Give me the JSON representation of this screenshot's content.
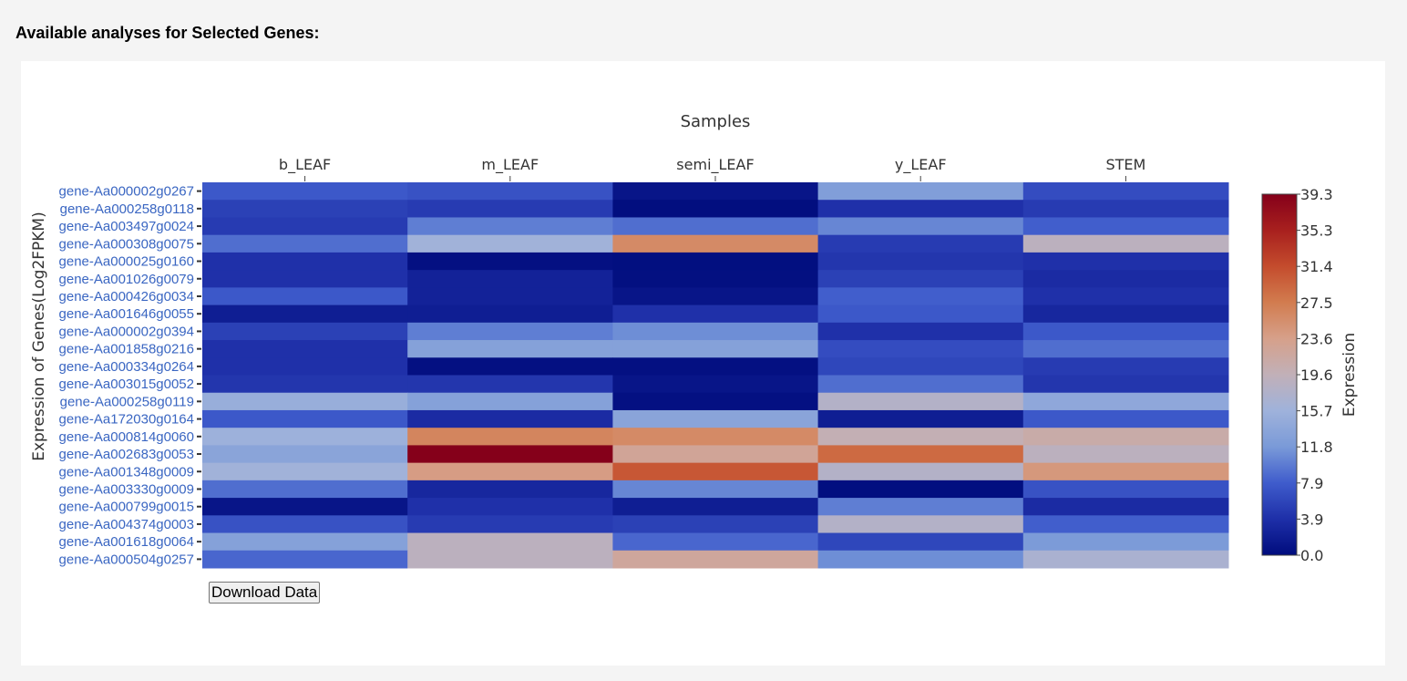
{
  "page": {
    "title": "Available analyses for Selected Genes:"
  },
  "download_label": "Download Data",
  "chart_data": {
    "type": "heatmap",
    "title": "",
    "xlabel": "Samples",
    "ylabel": "Expression of Genes(Log2FPKM)",
    "colorbar_title": "Expression",
    "colorbar_ticks": [
      "39.3",
      "35.3",
      "31.4",
      "27.5",
      "23.6",
      "19.6",
      "15.7",
      "11.8",
      "7.9",
      "3.9",
      "0.0"
    ],
    "zrange": [
      0,
      39.3
    ],
    "colorscale": [
      [
        0.0,
        "#000c7d"
      ],
      [
        0.1,
        "#1e2fa8"
      ],
      [
        0.2,
        "#3f5ccc"
      ],
      [
        0.3,
        "#7a9ad8"
      ],
      [
        0.4,
        "#9fb2db"
      ],
      [
        0.5,
        "#c1b0b8"
      ],
      [
        0.6,
        "#d6a08a"
      ],
      [
        0.7,
        "#d27c4f"
      ],
      [
        0.8,
        "#c44c2d"
      ],
      [
        0.9,
        "#a8201e"
      ],
      [
        1.0,
        "#85001a"
      ]
    ],
    "x": [
      "b_LEAF",
      "m_LEAF",
      "semi_LEAF",
      "y_LEAF",
      "STEM"
    ],
    "y": [
      "gene-Aa000002g0267",
      "gene-Aa000258g0118",
      "gene-Aa003497g0024",
      "gene-Aa000308g0075",
      "gene-Aa000025g0160",
      "gene-Aa001026g0079",
      "gene-Aa000426g0034",
      "gene-Aa001646g0055",
      "gene-Aa000002g0394",
      "gene-Aa001858g0216",
      "gene-Aa000334g0264",
      "gene-Aa003015g0052",
      "gene-Aa000258g0119",
      "gene-Aa172030g0164",
      "gene-Aa000814g0060",
      "gene-Aa002683g0053",
      "gene-Aa001348g0009",
      "gene-Aa003330g0009",
      "gene-Aa000799g0015",
      "gene-Aa004374g0003",
      "gene-Aa001618g0064",
      "gene-Aa000504g0257"
    ],
    "z": [
      [
        7.5,
        7.0,
        1.0,
        12.5,
        6.5
      ],
      [
        5.5,
        5.0,
        0.2,
        4.0,
        5.0
      ],
      [
        5.0,
        10.0,
        9.0,
        10.5,
        8.0
      ],
      [
        9.0,
        16.0,
        26.0,
        5.0,
        19.0
      ],
      [
        4.0,
        0.5,
        0.3,
        4.5,
        4.0
      ],
      [
        4.0,
        2.5,
        0.4,
        5.5,
        3.5
      ],
      [
        7.5,
        2.5,
        1.0,
        8.0,
        4.0
      ],
      [
        2.0,
        2.0,
        4.0,
        7.5,
        3.0
      ],
      [
        5.5,
        10.0,
        11.0,
        4.0,
        7.5
      ],
      [
        4.0,
        13.0,
        13.0,
        6.5,
        9.0
      ],
      [
        4.0,
        0.5,
        0.5,
        6.0,
        5.0
      ],
      [
        4.5,
        4.5,
        1.0,
        9.0,
        4.5
      ],
      [
        15.0,
        13.0,
        0.5,
        18.0,
        14.0
      ],
      [
        7.5,
        3.5,
        13.5,
        2.0,
        7.5
      ],
      [
        15.5,
        26.5,
        26.0,
        20.0,
        21.0
      ],
      [
        13.5,
        39.3,
        22.5,
        29.0,
        19.0
      ],
      [
        16.0,
        24.0,
        30.5,
        18.0,
        24.5
      ],
      [
        9.0,
        3.0,
        10.5,
        0.3,
        7.0
      ],
      [
        1.0,
        4.0,
        2.0,
        10.0,
        3.5
      ],
      [
        7.0,
        5.0,
        5.5,
        18.0,
        8.0
      ],
      [
        13.0,
        19.0,
        8.5,
        6.0,
        12.0
      ],
      [
        8.5,
        19.0,
        22.0,
        11.0,
        17.0
      ]
    ]
  }
}
